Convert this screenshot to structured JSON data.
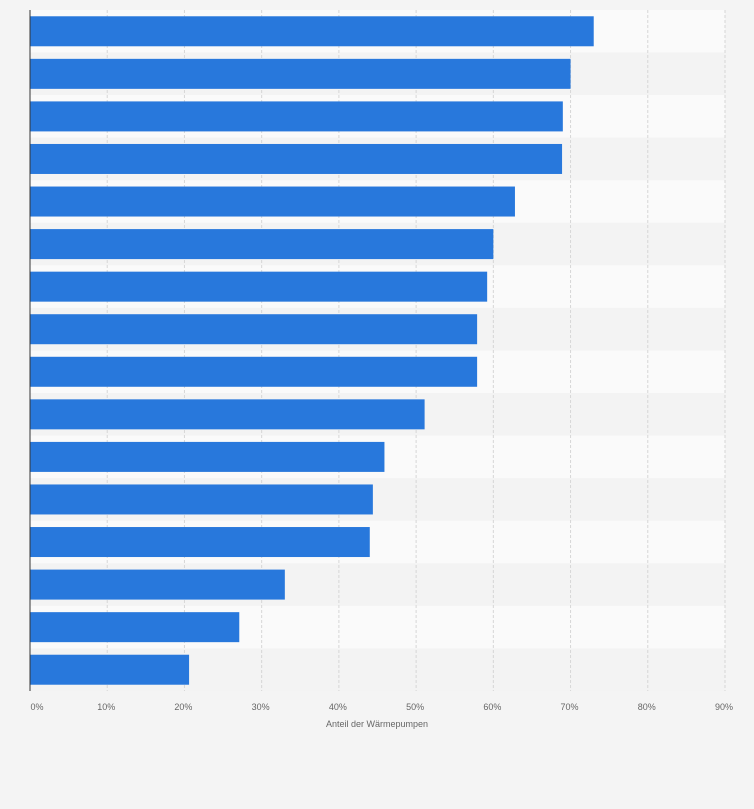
{
  "chart_data": {
    "type": "bar",
    "orientation": "horizontal",
    "xlabel": "Anteil der Wärmepumpen",
    "ylabel": "",
    "xlim": [
      0,
      90
    ],
    "x_ticks": [
      "0%",
      "10%",
      "20%",
      "30%",
      "40%",
      "50%",
      "60%",
      "70%",
      "80%",
      "90%"
    ],
    "grid": true,
    "bar_color": "#2878dc",
    "values": [
      73,
      70,
      69,
      68.9,
      62.8,
      60,
      59.2,
      57.9,
      57.9,
      51.1,
      45.9,
      44.4,
      44,
      33,
      27.1,
      20.6
    ]
  }
}
